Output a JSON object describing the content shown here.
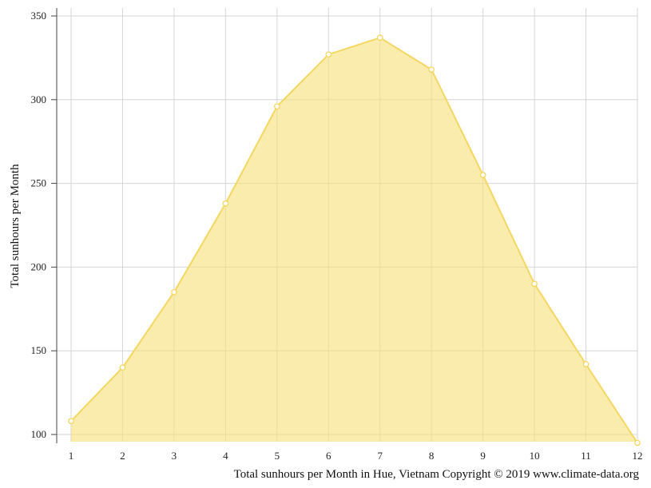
{
  "chart_data": {
    "type": "area",
    "x": [
      1,
      2,
      3,
      4,
      5,
      6,
      7,
      8,
      9,
      10,
      11,
      12
    ],
    "values": [
      108,
      140,
      185,
      238,
      296,
      327,
      337,
      318,
      255,
      190,
      142,
      95
    ],
    "ylabel": "Total sunhours per Month",
    "caption": "Total sunhours per Month in Hue, Vietnam Copyright © 2019 www.climate-data.org",
    "y_ticks": [
      100,
      150,
      200,
      250,
      300,
      350
    ],
    "ylim": [
      95,
      355
    ],
    "grid": true,
    "colors": {
      "fill": "#f7e07a",
      "line": "#f3d760",
      "point_fill": "#ffffff"
    }
  }
}
